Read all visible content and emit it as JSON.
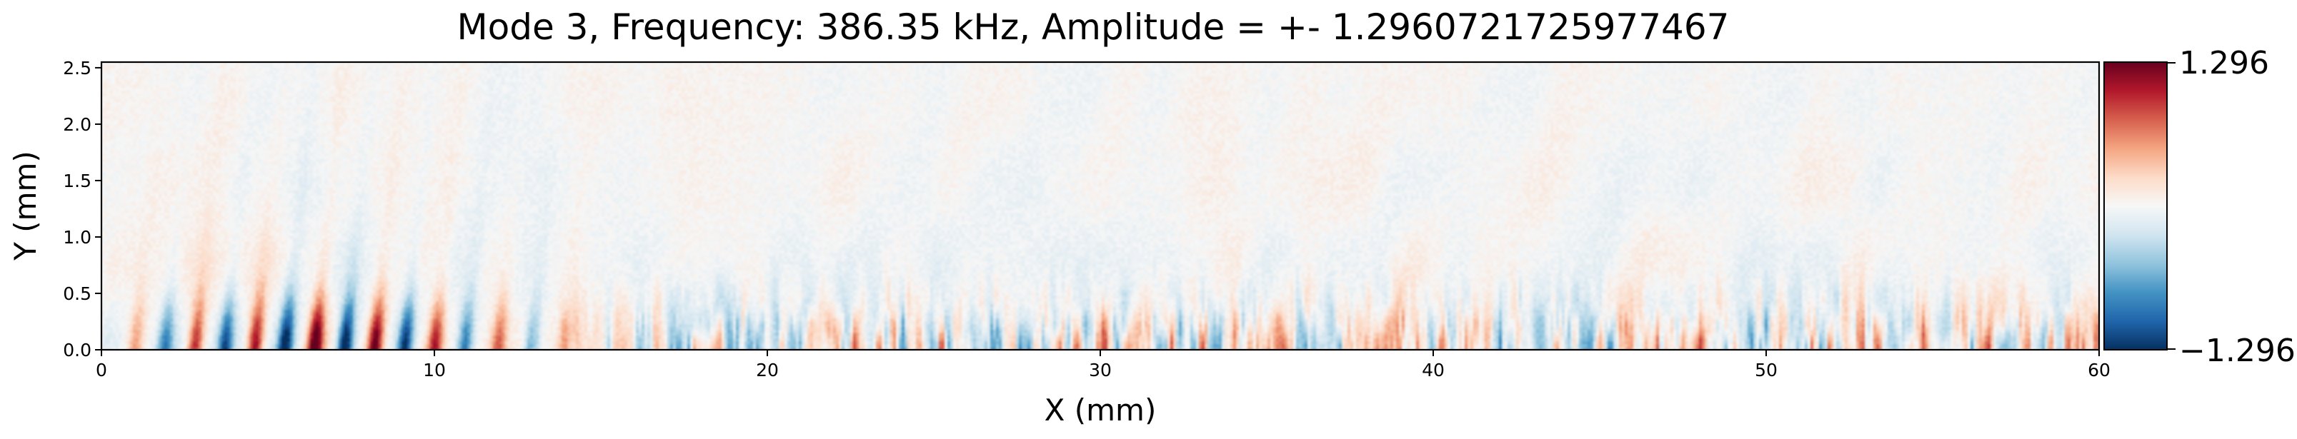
{
  "chart_data": {
    "type": "heatmap",
    "title": "Mode 3, Frequency: 386.35 kHz, Amplitude = +- 1.2960721725977467",
    "xlabel": "X (mm)",
    "ylabel": "Y (mm)",
    "xlim": [
      0,
      60
    ],
    "ylim": [
      0,
      2.55
    ],
    "x_ticks": [
      0,
      10,
      20,
      30,
      40,
      50,
      60
    ],
    "x_tick_labels": [
      "0",
      "10",
      "20",
      "30",
      "40",
      "50",
      "60"
    ],
    "y_ticks": [
      0.0,
      0.5,
      1.0,
      1.5,
      2.0,
      2.5
    ],
    "y_tick_labels": [
      "0.0",
      "0.5",
      "1.0",
      "1.5",
      "2.0",
      "2.5"
    ],
    "colormap": "RdBu_r",
    "colorbar": {
      "min": -1.296,
      "max": 1.296,
      "min_label": "−1.296",
      "max_label": "1.296"
    },
    "field_description_values": {
      "upstream_wave_packets": [
        {
          "x": 1.0,
          "sign": 1,
          "amp": 0.35
        },
        {
          "x": 1.9,
          "sign": -1,
          "amp": 0.55
        },
        {
          "x": 2.8,
          "sign": 1,
          "amp": 0.7
        },
        {
          "x": 3.7,
          "sign": -1,
          "amp": 0.75
        },
        {
          "x": 4.6,
          "sign": 1,
          "amp": 0.85
        },
        {
          "x": 5.5,
          "sign": -1,
          "amp": 0.95
        },
        {
          "x": 6.4,
          "sign": 1,
          "amp": 1.0
        },
        {
          "x": 7.3,
          "sign": -1,
          "amp": 1.0
        },
        {
          "x": 8.2,
          "sign": 1,
          "amp": 0.95
        },
        {
          "x": 9.1,
          "sign": -1,
          "amp": 0.85
        },
        {
          "x": 10.0,
          "sign": 1,
          "amp": 0.7
        },
        {
          "x": 10.9,
          "sign": -1,
          "amp": 0.6
        },
        {
          "x": 11.9,
          "sign": 1,
          "amp": 0.5
        },
        {
          "x": 12.9,
          "sign": -1,
          "amp": 0.4
        },
        {
          "x": 13.9,
          "sign": 1,
          "amp": 0.35
        }
      ]
    }
  },
  "colors": {
    "background": "#ffffff",
    "axis": "#000000",
    "red_max": "#67001f",
    "blue_max": "#053061",
    "neutral": "#f7f7f7"
  }
}
